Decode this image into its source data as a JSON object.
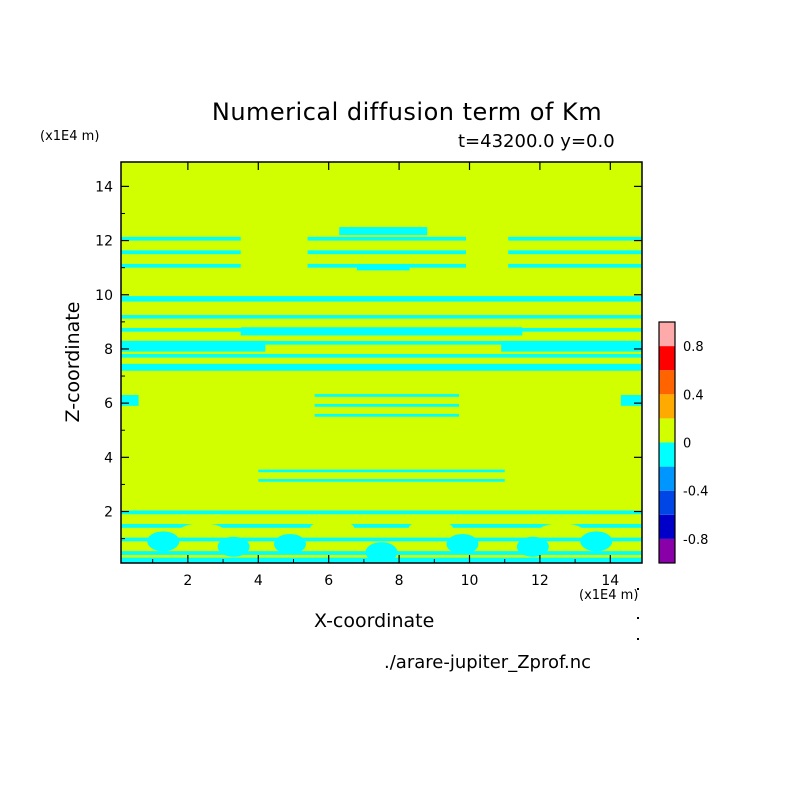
{
  "chart_data": {
    "type": "heatmap",
    "title": "Numerical diffusion term of Km",
    "subtitle": "t=43200.0 y=0.0",
    "xlabel": "X-coordinate",
    "ylabel": "Z-coordinate",
    "x_unit": "(x1E4 m)",
    "y_unit": "(x1E4 m)",
    "xlim": [
      0.1,
      14.9
    ],
    "ylim": [
      0.1,
      14.9
    ],
    "xticks": [
      "2",
      "4",
      "6",
      "8",
      "10",
      "12",
      "14"
    ],
    "yticks": [
      "2",
      "4",
      "6",
      "8",
      "10",
      "12",
      "14"
    ],
    "background_level": "0 to 0.2",
    "colorbar": {
      "levels": [
        -1.0,
        -0.8,
        -0.6,
        -0.4,
        -0.2,
        0.0,
        0.2,
        0.4,
        0.6,
        0.8,
        1.0
      ],
      "colors": [
        "#8a00a8",
        "#0000c8",
        "#0046e6",
        "#0096ff",
        "#00ffff",
        "#d2ff00",
        "#ffaa00",
        "#ff6400",
        "#ff0000",
        "#ffaaaa"
      ],
      "tick_labels": [
        "0.8",
        "0.4",
        "0",
        "-0.4",
        "-0.8"
      ],
      "tick_values": [
        0.8,
        0.4,
        0.0,
        -0.4,
        -0.8
      ]
    },
    "regions_level_minus0.2_to_0": [
      {
        "band": "z 11.0-12.5",
        "x_ranges": [
          [
            0.1,
            3.6
          ],
          [
            5.0,
            10.3
          ],
          [
            11.0,
            14.9
          ]
        ]
      },
      {
        "band": "z 9.9-10.0",
        "x_ranges": [
          [
            0.1,
            14.9
          ]
        ]
      },
      {
        "band": "z 7.2-9.5",
        "x_ranges": [
          [
            0.1,
            14.9
          ]
        ]
      },
      {
        "band": "z 5.5-6.5",
        "x_ranges": [
          [
            0.1,
            0.7
          ],
          [
            5.5,
            9.8
          ],
          [
            14.1,
            14.9
          ]
        ]
      },
      {
        "band": "z 3.2-3.7",
        "x_ranges": [
          [
            4.0,
            11.0
          ]
        ]
      },
      {
        "band": "z 0.1-2.3",
        "x_ranges": [
          [
            0.1,
            14.9
          ]
        ]
      }
    ]
  },
  "source_file": "./arare-jupiter_Zprof.nc"
}
